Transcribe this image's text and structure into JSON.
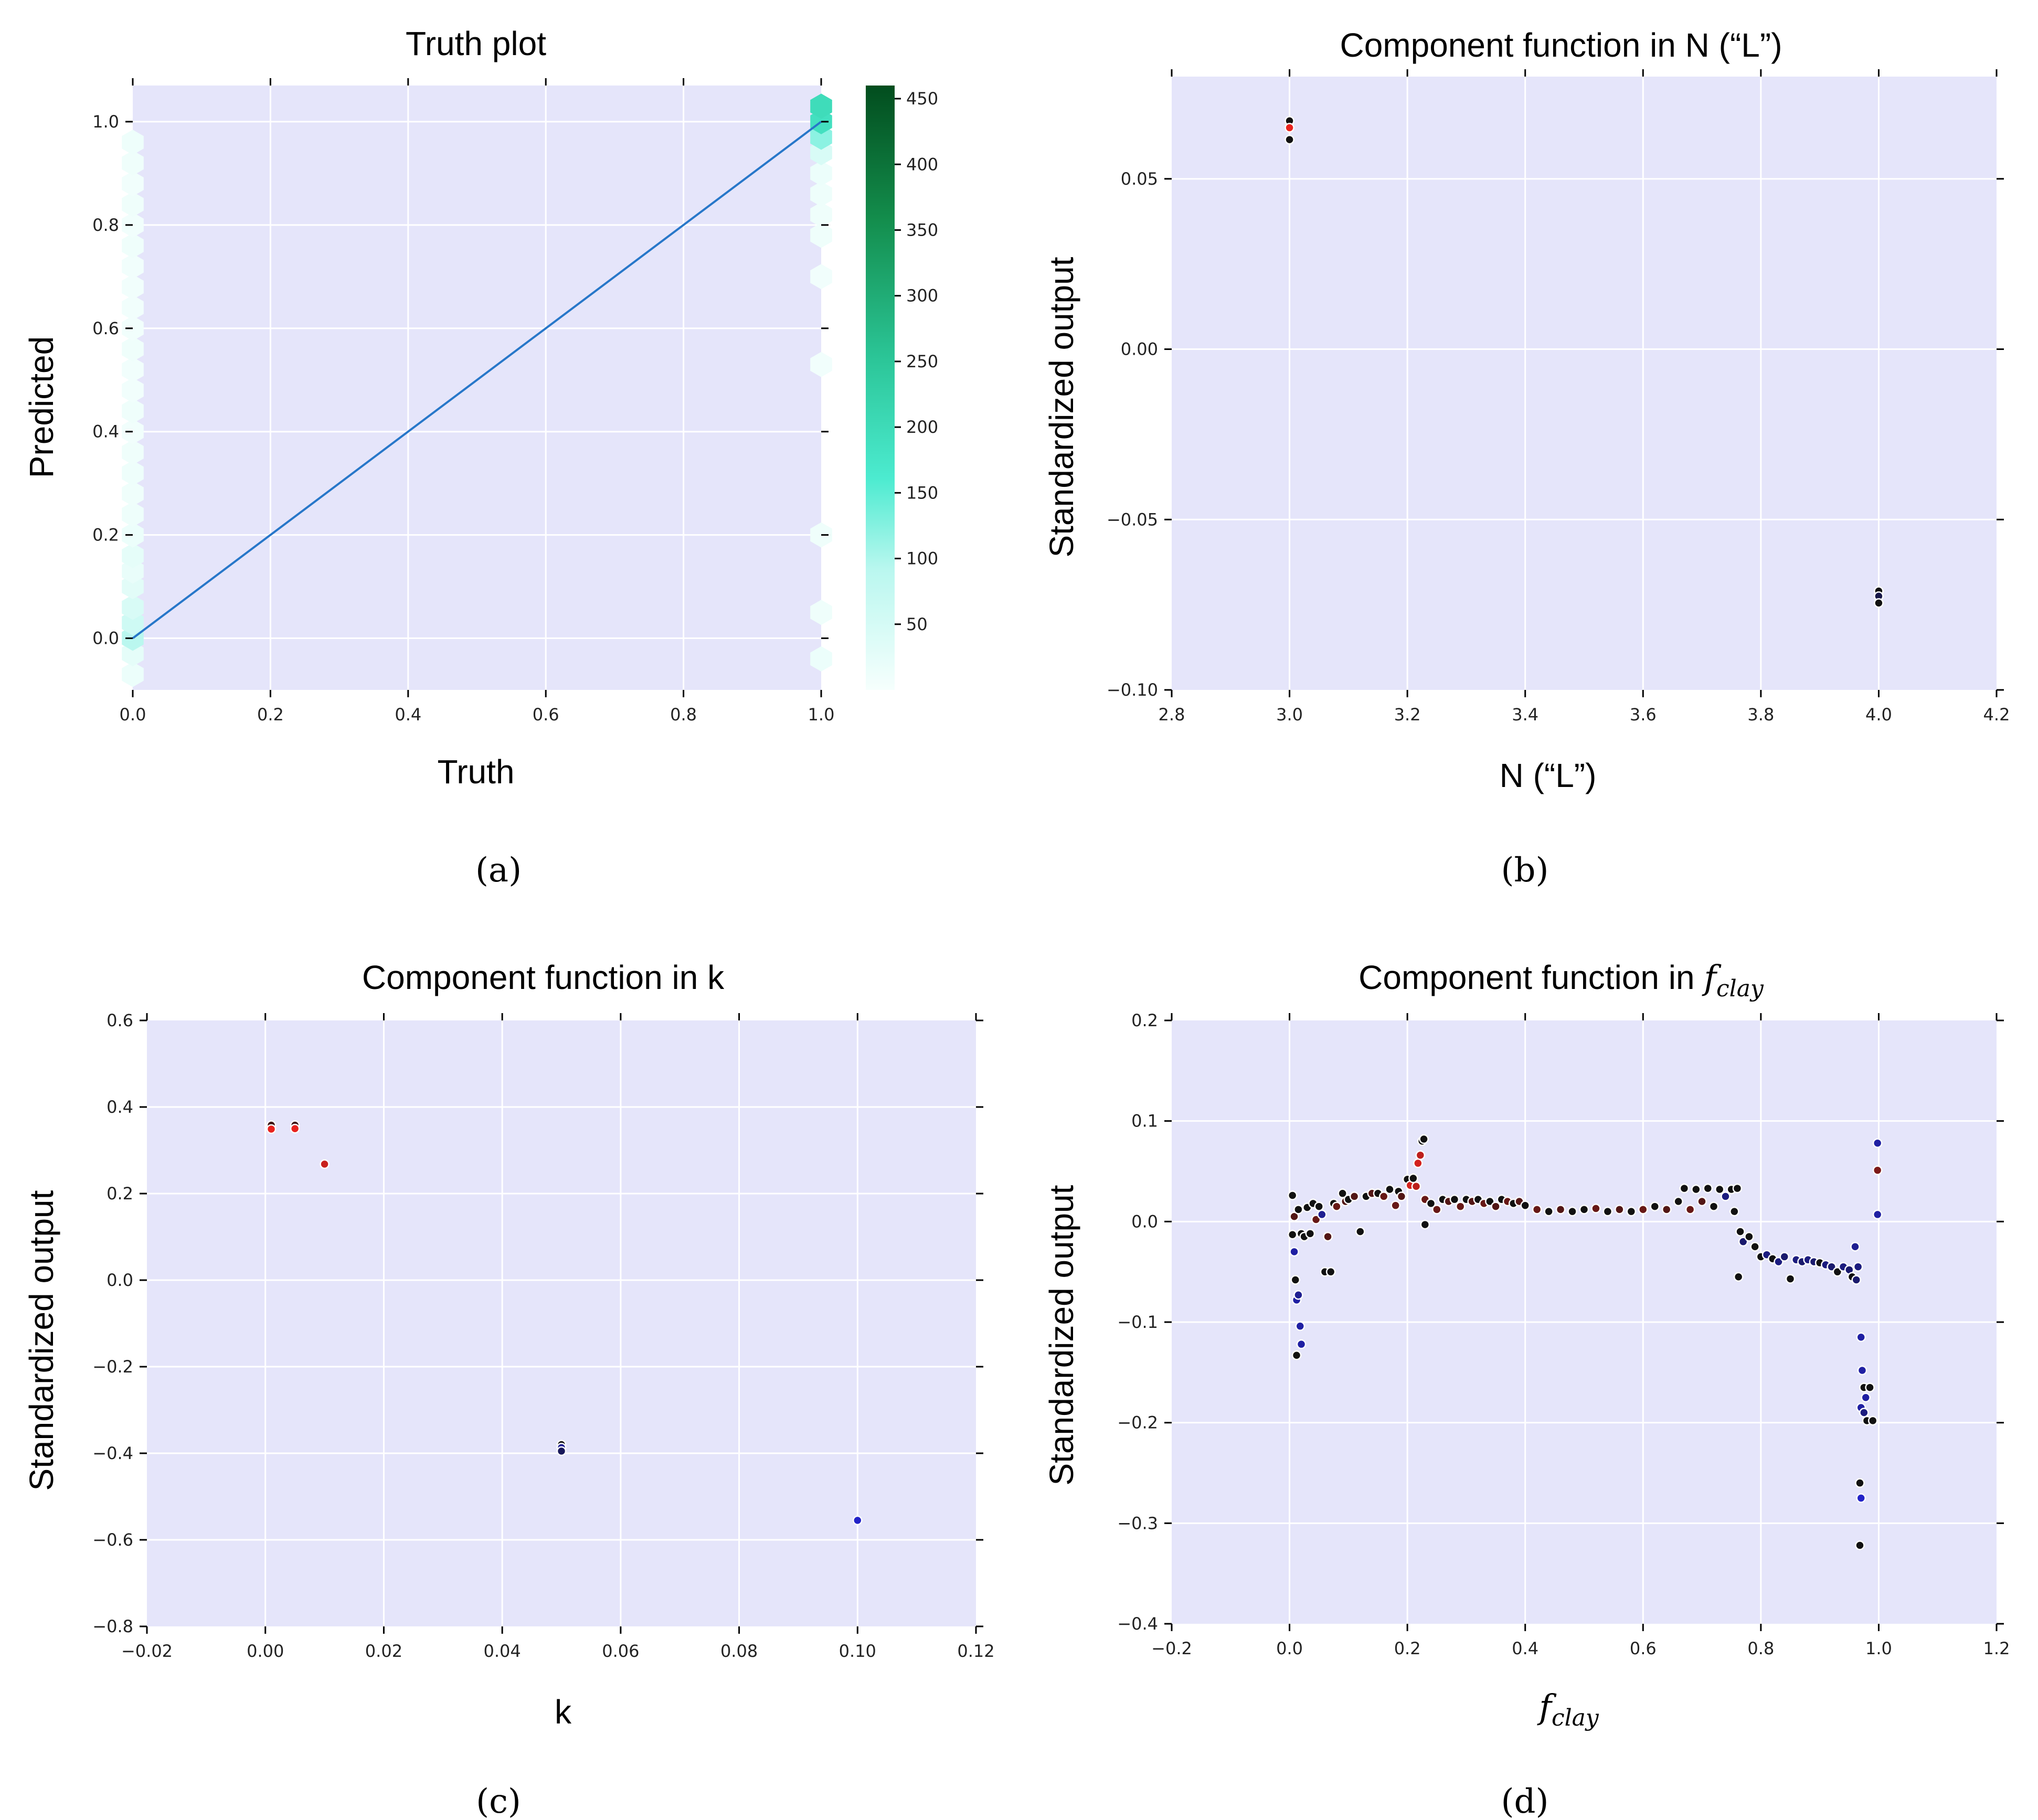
{
  "figure": {
    "captions": [
      "(a)",
      "(b)",
      "(c)",
      "(d)"
    ]
  },
  "colors": {
    "plot_background": "#e5e5fa",
    "grid": "#ffffff",
    "identity_line": "#2777c9",
    "positive": "#e8231e",
    "negative": "#2323c8",
    "neutral": "#111111",
    "colormap": [
      "#f6fffd",
      "#b9f7ef",
      "#4cebd0",
      "#2bc597",
      "#138d4c",
      "#024d1e"
    ]
  },
  "chart_data": [
    {
      "id": "a",
      "type": "heatmap",
      "subtype": "hexbin",
      "title": "Truth plot",
      "xlabel": "Truth",
      "ylabel": "Predicted",
      "xlim": [
        0.0,
        1.0
      ],
      "ylim": [
        -0.1,
        1.07
      ],
      "xticks": [
        "0.0",
        "0.2",
        "0.4",
        "0.6",
        "0.8",
        "1.0"
      ],
      "yticks": [
        "0.0",
        "0.2",
        "0.4",
        "0.6",
        "0.8",
        "1.0"
      ],
      "colorbar": {
        "range": [
          0,
          460
        ],
        "ticks": [
          "50",
          "100",
          "150",
          "200",
          "250",
          "300",
          "350",
          "400",
          "450"
        ]
      },
      "identity_line": [
        [
          0.0,
          0.0
        ],
        [
          1.0,
          1.0
        ]
      ],
      "bins": [
        {
          "x": 0.0,
          "y": -0.07,
          "count": 15
        },
        {
          "x": 0.0,
          "y": -0.03,
          "count": 25
        },
        {
          "x": 0.0,
          "y": 0.0,
          "count": 90
        },
        {
          "x": 0.0,
          "y": 0.03,
          "count": 60
        },
        {
          "x": 0.0,
          "y": 0.06,
          "count": 45
        },
        {
          "x": 0.0,
          "y": 0.1,
          "count": 30
        },
        {
          "x": 0.0,
          "y": 0.13,
          "count": 20
        },
        {
          "x": 0.0,
          "y": 0.16,
          "count": 25
        },
        {
          "x": 0.0,
          "y": 0.2,
          "count": 15
        },
        {
          "x": 0.0,
          "y": 0.24,
          "count": 12
        },
        {
          "x": 0.0,
          "y": 0.28,
          "count": 10
        },
        {
          "x": 0.0,
          "y": 0.32,
          "count": 12
        },
        {
          "x": 0.0,
          "y": 0.36,
          "count": 10
        },
        {
          "x": 0.0,
          "y": 0.4,
          "count": 8
        },
        {
          "x": 0.0,
          "y": 0.44,
          "count": 10
        },
        {
          "x": 0.0,
          "y": 0.48,
          "count": 8
        },
        {
          "x": 0.0,
          "y": 0.52,
          "count": 8
        },
        {
          "x": 0.0,
          "y": 0.56,
          "count": 10
        },
        {
          "x": 0.0,
          "y": 0.6,
          "count": 8
        },
        {
          "x": 0.0,
          "y": 0.64,
          "count": 8
        },
        {
          "x": 0.0,
          "y": 0.68,
          "count": 8
        },
        {
          "x": 0.0,
          "y": 0.72,
          "count": 8
        },
        {
          "x": 0.0,
          "y": 0.76,
          "count": 10
        },
        {
          "x": 0.0,
          "y": 0.8,
          "count": 8
        },
        {
          "x": 0.0,
          "y": 0.84,
          "count": 10
        },
        {
          "x": 0.0,
          "y": 0.88,
          "count": 8
        },
        {
          "x": 0.0,
          "y": 0.92,
          "count": 10
        },
        {
          "x": 0.0,
          "y": 0.96,
          "count": 12
        },
        {
          "x": 1.0,
          "y": -0.04,
          "count": 15
        },
        {
          "x": 1.0,
          "y": 0.05,
          "count": 10
        },
        {
          "x": 1.0,
          "y": 0.2,
          "count": 10
        },
        {
          "x": 1.0,
          "y": 0.53,
          "count": 8
        },
        {
          "x": 1.0,
          "y": 0.7,
          "count": 8
        },
        {
          "x": 1.0,
          "y": 0.78,
          "count": 10
        },
        {
          "x": 1.0,
          "y": 0.82,
          "count": 10
        },
        {
          "x": 1.0,
          "y": 0.86,
          "count": 12
        },
        {
          "x": 1.0,
          "y": 0.9,
          "count": 15
        },
        {
          "x": 1.0,
          "y": 0.94,
          "count": 45
        },
        {
          "x": 1.0,
          "y": 0.97,
          "count": 130
        },
        {
          "x": 1.0,
          "y": 1.0,
          "count": 210
        },
        {
          "x": 1.0,
          "y": 1.03,
          "count": 220
        }
      ]
    },
    {
      "id": "b",
      "type": "scatter",
      "title": "Component function in N (“L”)",
      "xlabel": "N (“L”)",
      "ylabel": "Standardized output",
      "xlim": [
        2.8,
        4.2
      ],
      "ylim": [
        -0.1,
        0.08
      ],
      "xticks": [
        "2.8",
        "3.0",
        "3.2",
        "3.4",
        "3.6",
        "3.8",
        "4.0",
        "4.2"
      ],
      "yticks": [
        "−0.10",
        "−0.05",
        "0.00",
        "0.05"
      ],
      "points": [
        {
          "x": 3.0,
          "y": 0.067,
          "c": 0.0
        },
        {
          "x": 3.0,
          "y": 0.065,
          "c": 1.0
        },
        {
          "x": 3.0,
          "y": 0.0615,
          "c": 0.0
        },
        {
          "x": 4.0,
          "y": -0.071,
          "c": 0.0
        },
        {
          "x": 4.0,
          "y": -0.0725,
          "c": -0.3
        },
        {
          "x": 4.0,
          "y": -0.0745,
          "c": 0.0
        }
      ]
    },
    {
      "id": "c",
      "type": "scatter",
      "title": "Component function in k",
      "xlabel": "k",
      "ylabel": "Standardized output",
      "xlim": [
        -0.02,
        0.12
      ],
      "ylim": [
        -0.8,
        0.6
      ],
      "xticks": [
        "−0.02",
        "0.00",
        "0.02",
        "0.04",
        "0.06",
        "0.08",
        "0.10",
        "0.12"
      ],
      "yticks": [
        "−0.8",
        "−0.6",
        "−0.4",
        "−0.2",
        "0.0",
        "0.2",
        "0.4",
        "0.6"
      ],
      "points": [
        {
          "x": 0.001,
          "y": 0.358,
          "c": 0.2
        },
        {
          "x": 0.001,
          "y": 0.349,
          "c": 1.0
        },
        {
          "x": 0.005,
          "y": 0.358,
          "c": 0.2
        },
        {
          "x": 0.005,
          "y": 0.35,
          "c": 1.0
        },
        {
          "x": 0.01,
          "y": 0.268,
          "c": 0.85
        },
        {
          "x": 0.05,
          "y": -0.38,
          "c": 0.0
        },
        {
          "x": 0.05,
          "y": -0.387,
          "c": -0.7
        },
        {
          "x": 0.05,
          "y": -0.395,
          "c": -0.4
        },
        {
          "x": 0.1,
          "y": -0.555,
          "c": -1.0
        }
      ]
    },
    {
      "id": "d",
      "type": "scatter",
      "title_prefix": "Component function in ",
      "title_var": "f",
      "title_sub": "clay",
      "xlabel_var": "f",
      "xlabel_sub": "clay",
      "ylabel": "Standardized output",
      "xlim": [
        -0.2,
        1.2
      ],
      "ylim": [
        -0.4,
        0.2
      ],
      "xticks": [
        "−0.2",
        "0.0",
        "0.2",
        "0.4",
        "0.6",
        "0.8",
        "1.0",
        "1.2"
      ],
      "yticks": [
        "−0.4",
        "−0.3",
        "−0.2",
        "−0.1",
        "0.0",
        "0.1",
        "0.2"
      ],
      "points": [
        {
          "x": 0.005,
          "y": 0.026,
          "c": 0.0
        },
        {
          "x": 0.008,
          "y": 0.005,
          "c": 0.3
        },
        {
          "x": 0.005,
          "y": -0.013,
          "c": 0.0
        },
        {
          "x": 0.008,
          "y": -0.03,
          "c": -0.8
        },
        {
          "x": 0.01,
          "y": -0.058,
          "c": 0.0
        },
        {
          "x": 0.012,
          "y": -0.078,
          "c": -0.8
        },
        {
          "x": 0.015,
          "y": -0.073,
          "c": -0.7
        },
        {
          "x": 0.018,
          "y": -0.104,
          "c": -0.8
        },
        {
          "x": 0.02,
          "y": -0.122,
          "c": -0.8
        },
        {
          "x": 0.012,
          "y": -0.133,
          "c": 0.0
        },
        {
          "x": 0.015,
          "y": 0.012,
          "c": 0.0
        },
        {
          "x": 0.02,
          "y": -0.012,
          "c": 0.0
        },
        {
          "x": 0.025,
          "y": -0.015,
          "c": 0.0
        },
        {
          "x": 0.03,
          "y": 0.014,
          "c": 0.0
        },
        {
          "x": 0.035,
          "y": -0.012,
          "c": 0.0
        },
        {
          "x": 0.04,
          "y": 0.018,
          "c": 0.0
        },
        {
          "x": 0.045,
          "y": 0.002,
          "c": 0.4
        },
        {
          "x": 0.05,
          "y": 0.015,
          "c": 0.0
        },
        {
          "x": 0.055,
          "y": 0.007,
          "c": -0.7
        },
        {
          "x": 0.06,
          "y": -0.05,
          "c": 0.0
        },
        {
          "x": 0.065,
          "y": -0.015,
          "c": 0.3
        },
        {
          "x": 0.07,
          "y": -0.05,
          "c": 0.0
        },
        {
          "x": 0.075,
          "y": 0.018,
          "c": 0.0
        },
        {
          "x": 0.08,
          "y": 0.015,
          "c": 0.4
        },
        {
          "x": 0.09,
          "y": 0.028,
          "c": 0.0
        },
        {
          "x": 0.095,
          "y": 0.02,
          "c": 0.3
        },
        {
          "x": 0.1,
          "y": 0.022,
          "c": 0.0
        },
        {
          "x": 0.11,
          "y": 0.025,
          "c": 0.3
        },
        {
          "x": 0.12,
          "y": -0.01,
          "c": 0.0
        },
        {
          "x": 0.13,
          "y": 0.025,
          "c": 0.0
        },
        {
          "x": 0.14,
          "y": 0.028,
          "c": 0.3
        },
        {
          "x": 0.15,
          "y": 0.028,
          "c": 0.0
        },
        {
          "x": 0.16,
          "y": 0.025,
          "c": 0.4
        },
        {
          "x": 0.17,
          "y": 0.032,
          "c": 0.0
        },
        {
          "x": 0.18,
          "y": 0.016,
          "c": 0.4
        },
        {
          "x": 0.185,
          "y": 0.03,
          "c": 0.0
        },
        {
          "x": 0.19,
          "y": 0.025,
          "c": 0.3
        },
        {
          "x": 0.2,
          "y": 0.042,
          "c": 0.0
        },
        {
          "x": 0.205,
          "y": 0.036,
          "c": 0.9
        },
        {
          "x": 0.21,
          "y": 0.043,
          "c": 0.0
        },
        {
          "x": 0.215,
          "y": 0.035,
          "c": 0.8
        },
        {
          "x": 0.218,
          "y": 0.058,
          "c": 0.9
        },
        {
          "x": 0.222,
          "y": 0.066,
          "c": 0.8
        },
        {
          "x": 0.225,
          "y": 0.08,
          "c": 0.0
        },
        {
          "x": 0.228,
          "y": 0.082,
          "c": 0.0
        },
        {
          "x": 0.23,
          "y": -0.003,
          "c": 0.0
        },
        {
          "x": 0.23,
          "y": 0.022,
          "c": 0.4
        },
        {
          "x": 0.24,
          "y": 0.018,
          "c": 0.0
        },
        {
          "x": 0.25,
          "y": 0.012,
          "c": 0.4
        },
        {
          "x": 0.26,
          "y": 0.022,
          "c": 0.0
        },
        {
          "x": 0.27,
          "y": 0.02,
          "c": 0.3
        },
        {
          "x": 0.28,
          "y": 0.022,
          "c": 0.0
        },
        {
          "x": 0.29,
          "y": 0.015,
          "c": 0.4
        },
        {
          "x": 0.3,
          "y": 0.022,
          "c": 0.0
        },
        {
          "x": 0.31,
          "y": 0.02,
          "c": 0.3
        },
        {
          "x": 0.32,
          "y": 0.022,
          "c": 0.0
        },
        {
          "x": 0.33,
          "y": 0.018,
          "c": 0.4
        },
        {
          "x": 0.34,
          "y": 0.02,
          "c": 0.0
        },
        {
          "x": 0.35,
          "y": 0.015,
          "c": 0.3
        },
        {
          "x": 0.36,
          "y": 0.022,
          "c": 0.0
        },
        {
          "x": 0.37,
          "y": 0.02,
          "c": 0.4
        },
        {
          "x": 0.38,
          "y": 0.018,
          "c": 0.0
        },
        {
          "x": 0.39,
          "y": 0.02,
          "c": 0.3
        },
        {
          "x": 0.4,
          "y": 0.016,
          "c": 0.0
        },
        {
          "x": 0.42,
          "y": 0.012,
          "c": 0.4
        },
        {
          "x": 0.44,
          "y": 0.01,
          "c": 0.0
        },
        {
          "x": 0.46,
          "y": 0.012,
          "c": 0.3
        },
        {
          "x": 0.48,
          "y": 0.01,
          "c": 0.0
        },
        {
          "x": 0.5,
          "y": 0.012,
          "c": 0.0
        },
        {
          "x": 0.52,
          "y": 0.013,
          "c": 0.4
        },
        {
          "x": 0.54,
          "y": 0.01,
          "c": 0.0
        },
        {
          "x": 0.56,
          "y": 0.012,
          "c": 0.3
        },
        {
          "x": 0.58,
          "y": 0.01,
          "c": 0.0
        },
        {
          "x": 0.6,
          "y": 0.012,
          "c": 0.4
        },
        {
          "x": 0.62,
          "y": 0.015,
          "c": 0.0
        },
        {
          "x": 0.64,
          "y": 0.012,
          "c": 0.3
        },
        {
          "x": 0.66,
          "y": 0.02,
          "c": 0.0
        },
        {
          "x": 0.67,
          "y": 0.033,
          "c": 0.0
        },
        {
          "x": 0.68,
          "y": 0.012,
          "c": 0.4
        },
        {
          "x": 0.69,
          "y": 0.032,
          "c": 0.0
        },
        {
          "x": 0.7,
          "y": 0.02,
          "c": 0.3
        },
        {
          "x": 0.71,
          "y": 0.033,
          "c": 0.0
        },
        {
          "x": 0.72,
          "y": 0.015,
          "c": 0.0
        },
        {
          "x": 0.73,
          "y": 0.032,
          "c": 0.0
        },
        {
          "x": 0.74,
          "y": 0.025,
          "c": -0.6
        },
        {
          "x": 0.75,
          "y": 0.032,
          "c": 0.0
        },
        {
          "x": 0.755,
          "y": 0.01,
          "c": 0.0
        },
        {
          "x": 0.76,
          "y": 0.033,
          "c": 0.0
        },
        {
          "x": 0.762,
          "y": -0.055,
          "c": 0.0
        },
        {
          "x": 0.765,
          "y": -0.01,
          "c": 0.0
        },
        {
          "x": 0.77,
          "y": -0.02,
          "c": -0.5
        },
        {
          "x": 0.78,
          "y": -0.015,
          "c": 0.0
        },
        {
          "x": 0.79,
          "y": -0.025,
          "c": 0.0
        },
        {
          "x": 0.8,
          "y": -0.035,
          "c": 0.0
        },
        {
          "x": 0.81,
          "y": -0.033,
          "c": -0.6
        },
        {
          "x": 0.82,
          "y": -0.037,
          "c": 0.0
        },
        {
          "x": 0.83,
          "y": -0.04,
          "c": -0.6
        },
        {
          "x": 0.84,
          "y": -0.035,
          "c": -0.5
        },
        {
          "x": 0.85,
          "y": -0.057,
          "c": 0.0
        },
        {
          "x": 0.86,
          "y": -0.038,
          "c": -0.6
        },
        {
          "x": 0.87,
          "y": -0.04,
          "c": -0.5
        },
        {
          "x": 0.88,
          "y": -0.038,
          "c": -0.6
        },
        {
          "x": 0.89,
          "y": -0.04,
          "c": -0.5
        },
        {
          "x": 0.9,
          "y": -0.041,
          "c": 0.0
        },
        {
          "x": 0.91,
          "y": -0.043,
          "c": -0.6
        },
        {
          "x": 0.92,
          "y": -0.045,
          "c": -0.5
        },
        {
          "x": 0.93,
          "y": -0.05,
          "c": 0.0
        },
        {
          "x": 0.94,
          "y": -0.045,
          "c": -0.6
        },
        {
          "x": 0.95,
          "y": -0.048,
          "c": -0.5
        },
        {
          "x": 0.955,
          "y": -0.055,
          "c": 0.0
        },
        {
          "x": 0.96,
          "y": -0.025,
          "c": -0.7
        },
        {
          "x": 0.962,
          "y": -0.058,
          "c": -0.5
        },
        {
          "x": 0.965,
          "y": -0.045,
          "c": -0.6
        },
        {
          "x": 0.97,
          "y": -0.115,
          "c": -0.8
        },
        {
          "x": 0.972,
          "y": -0.148,
          "c": -0.8
        },
        {
          "x": 0.97,
          "y": -0.185,
          "c": -0.8
        },
        {
          "x": 0.975,
          "y": -0.165,
          "c": 0.0
        },
        {
          "x": 0.978,
          "y": -0.175,
          "c": -0.8
        },
        {
          "x": 0.98,
          "y": -0.198,
          "c": 0.0
        },
        {
          "x": 0.985,
          "y": -0.165,
          "c": 0.0
        },
        {
          "x": 0.99,
          "y": -0.198,
          "c": 0.0
        },
        {
          "x": 0.968,
          "y": -0.26,
          "c": 0.0
        },
        {
          "x": 0.97,
          "y": -0.275,
          "c": -1.0
        },
        {
          "x": 0.968,
          "y": -0.322,
          "c": 0.0
        },
        {
          "x": 0.975,
          "y": -0.19,
          "c": -0.6
        },
        {
          "x": 0.998,
          "y": 0.078,
          "c": -0.8
        },
        {
          "x": 0.998,
          "y": 0.051,
          "c": 0.5
        },
        {
          "x": 0.998,
          "y": 0.007,
          "c": -0.8
        }
      ]
    }
  ]
}
